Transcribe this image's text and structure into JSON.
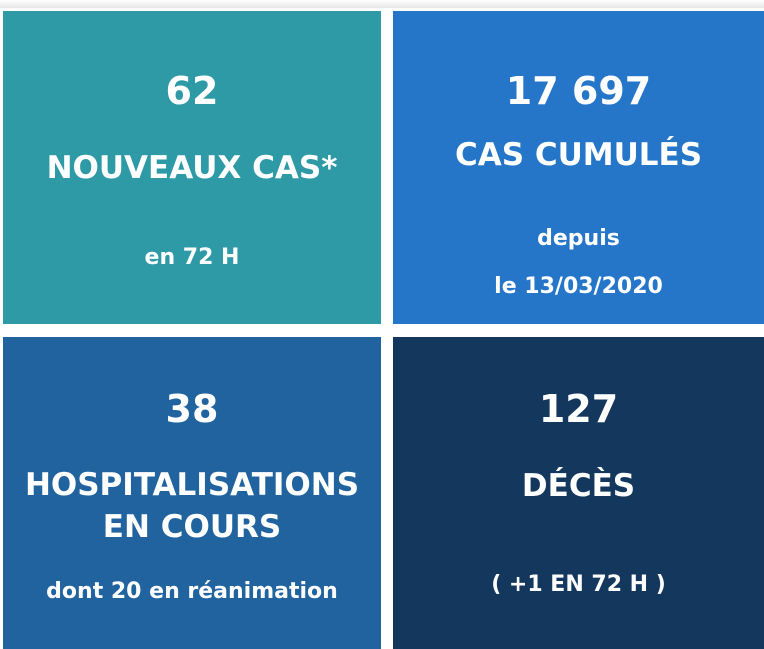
{
  "tiles": [
    {
      "value": "62",
      "label": "NOUVEAUX CAS*",
      "sub": [
        "en 72 H"
      ],
      "color": "#2e9aa6"
    },
    {
      "value": "17 697",
      "label": "CAS CUMULÉS",
      "sub": [
        "depuis",
        "le 13/03/2020"
      ],
      "color": "#2576c8"
    },
    {
      "value": "38",
      "label": [
        "HOSPITALISATIONS",
        "EN COURS"
      ],
      "sub": [
        "dont 20 en réanimation"
      ],
      "color": "#20639f"
    },
    {
      "value": "127",
      "label": "DÉCÈS",
      "sub": [
        "( +1 EN 72 H )"
      ],
      "color": "#14375e"
    }
  ]
}
